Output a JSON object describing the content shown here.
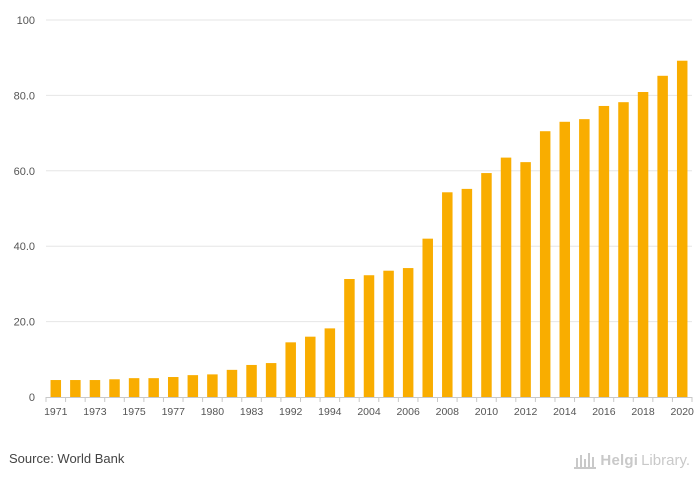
{
  "chart_data": {
    "type": "bar",
    "categories": [
      "1971",
      "1972",
      "1973",
      "1974",
      "1975",
      "1976",
      "1977",
      "1978",
      "1980",
      "1981",
      "1983",
      "1984",
      "1992",
      "1993",
      "1994",
      "1995",
      "2004",
      "2005",
      "2006",
      "2007",
      "2008",
      "2009",
      "2010",
      "2011",
      "2012",
      "2013",
      "2014",
      "2015",
      "2016",
      "2017",
      "2018",
      "2019",
      "2020"
    ],
    "x_tick_labels": [
      "1971",
      "1973",
      "1975",
      "1977",
      "1980",
      "1983",
      "1992",
      "1994",
      "2004",
      "2006",
      "2008",
      "2010",
      "2012",
      "2014",
      "2016",
      "2018",
      "2020"
    ],
    "values": [
      4.5,
      4.5,
      4.5,
      4.7,
      5.0,
      5.0,
      5.3,
      5.8,
      6.0,
      7.2,
      8.5,
      9.0,
      14.5,
      16.0,
      18.2,
      31.3,
      32.3,
      33.5,
      34.2,
      42.0,
      54.3,
      55.2,
      59.4,
      63.5,
      62.3,
      70.5,
      73.0,
      73.7,
      77.2,
      78.2,
      80.9,
      85.2,
      89.2
    ],
    "y_ticks": [
      "0",
      "20.0",
      "40.0",
      "60.0",
      "80.0",
      "100"
    ],
    "ylim": [
      0,
      100
    ],
    "bar_color": "#f9ad00",
    "grid": true,
    "title": "",
    "xlabel": "",
    "ylabel": ""
  },
  "footer": {
    "source": "Source: World Bank",
    "logo_name": "Helgi",
    "logo_suffix": "Library."
  },
  "colors": {
    "bar": "#f9ad00",
    "grid": "#e6e6e6",
    "axis": "#c8c8c8",
    "logo": "#c9c9c9"
  }
}
